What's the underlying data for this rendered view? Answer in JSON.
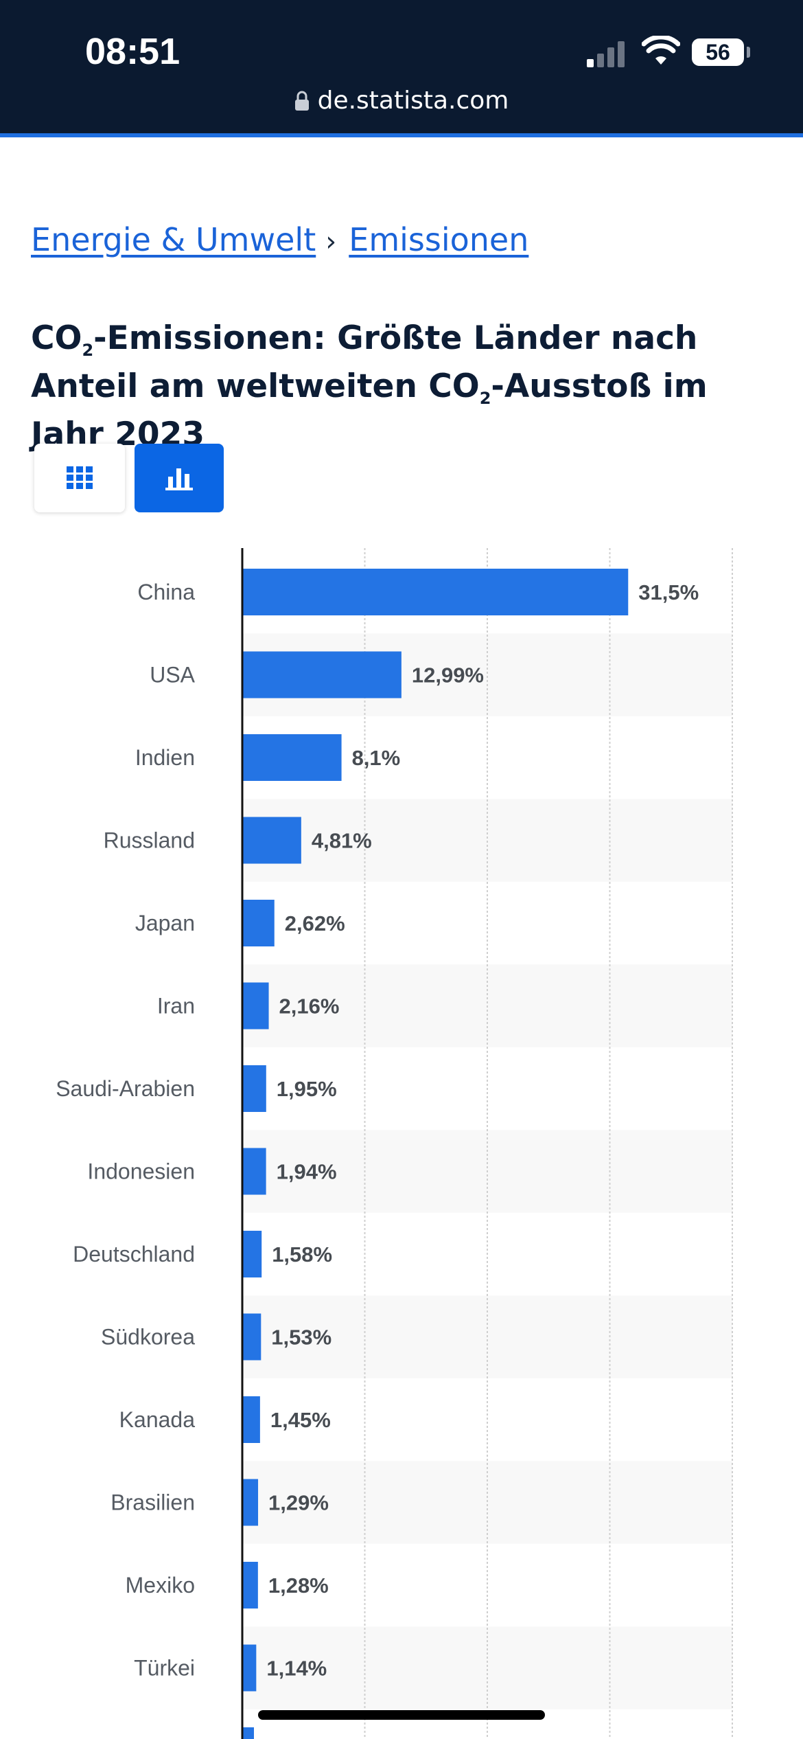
{
  "status_bar": {
    "time": "08:51",
    "battery": "56",
    "url": "de.statista.com"
  },
  "breadcrumb": {
    "items": [
      "Energie & Umwelt",
      "Emissionen"
    ],
    "separator": "›"
  },
  "title": {
    "part1": "CO",
    "sub1": "2",
    "part2": "-Emissionen: Größte Länder nach Anteil am weltweiten CO",
    "sub2": "2",
    "part3": "-Ausstoß im Jahr 2023"
  },
  "view_toggle": {
    "table_icon": "grid-icon",
    "chart_icon": "bar-chart-icon",
    "active": "chart"
  },
  "colors": {
    "header_bg": "#0b1a30",
    "accent": "#1f6fe0",
    "bar": "#2474e4",
    "link": "#1a63d8"
  },
  "chart_data": {
    "type": "bar",
    "orientation": "horizontal",
    "categories": [
      "China",
      "USA",
      "Indien",
      "Russland",
      "Japan",
      "Iran",
      "Saudi-Arabien",
      "Indonesien",
      "Deutschland",
      "Südkorea",
      "Kanada",
      "Brasilien",
      "Mexiko",
      "Türkei"
    ],
    "values": [
      31.5,
      12.99,
      8.1,
      4.81,
      2.62,
      2.16,
      1.95,
      1.94,
      1.58,
      1.53,
      1.45,
      1.29,
      1.28,
      1.14
    ],
    "value_labels": [
      "31,5%",
      "12,99%",
      "8,1%",
      "4,81%",
      "2,62%",
      "2,16%",
      "1,95%",
      "1,94%",
      "1,58%",
      "1,53%",
      "1,45%",
      "1,29%",
      "1,28%",
      "1,14%"
    ],
    "xlim": [
      0,
      40
    ],
    "grid": true
  }
}
